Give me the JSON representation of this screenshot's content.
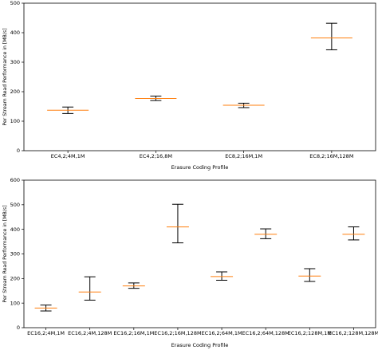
{
  "chart_data": [
    {
      "type": "box",
      "xlabel": "Erasure Coding Profile",
      "ylabel": "Per Stream Read Performance in [MB/s]",
      "ylim": [
        0,
        500
      ],
      "yticks": [
        0,
        100,
        200,
        300,
        400,
        500
      ],
      "grid": false,
      "categories": [
        "EC4,2;4M,1M",
        "EC4,2;16,8M",
        "EC8,2;16M,1M",
        "EC8,2;16M,128M"
      ],
      "whisker_low": [
        126,
        170,
        146,
        342
      ],
      "median": [
        137,
        177,
        154,
        382
      ],
      "whisker_high": [
        148,
        185,
        161,
        432
      ]
    },
    {
      "type": "box",
      "xlabel": "Erasure Coding Profile",
      "ylabel": "Per Stream Read Performance in [MB/s]",
      "ylim": [
        0,
        600
      ],
      "yticks": [
        0,
        100,
        200,
        300,
        400,
        500,
        600
      ],
      "grid": false,
      "categories": [
        "EC16,2;4M,1M",
        "EC16,2;4M,128M",
        "EC16,2;16M,1M",
        "EC16,2;16M,128M",
        "EC16,2;64M,1M",
        "EC16,2;64M,128M",
        "EC16,2;128M,1M",
        "EC16,2;128M,128M"
      ],
      "whisker_low": [
        68,
        112,
        160,
        345,
        193,
        362,
        188,
        357
      ],
      "median": [
        80,
        145,
        170,
        410,
        208,
        380,
        210,
        380
      ],
      "whisker_high": [
        92,
        207,
        182,
        502,
        227,
        402,
        240,
        410
      ]
    }
  ],
  "colors": {
    "median": "#ff7f0e",
    "whisker": "#000000",
    "axes": "#000000"
  }
}
